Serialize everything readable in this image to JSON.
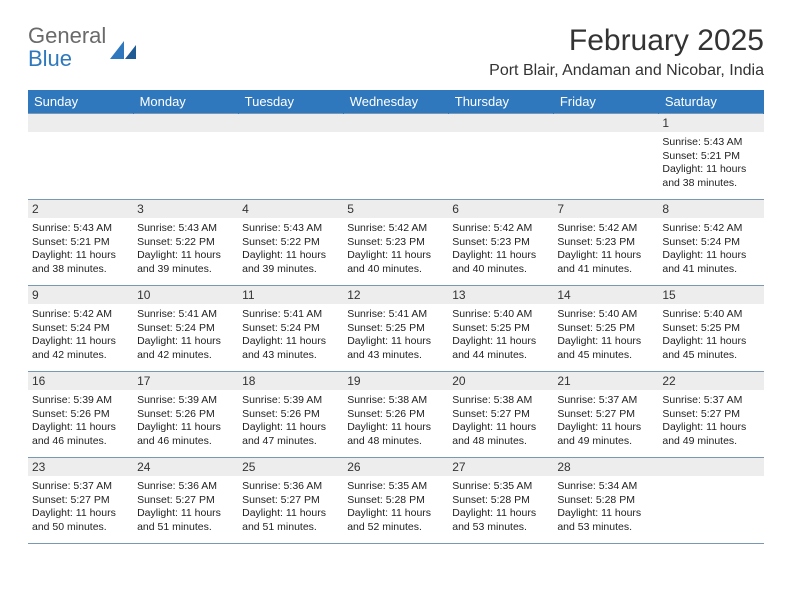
{
  "logo": {
    "line1": "General",
    "line2": "Blue"
  },
  "title": "February 2025",
  "location": "Port Blair, Andaman and Nicobar, India",
  "colors": {
    "header_bg": "#2f78bd",
    "header_text": "#ffffff",
    "daynum_bg": "#ededed",
    "cell_border": "#7a98b4",
    "body_text": "#333333",
    "logo_gray": "#6a6a6a",
    "logo_blue": "#2f78bd"
  },
  "weekdays": [
    "Sunday",
    "Monday",
    "Tuesday",
    "Wednesday",
    "Thursday",
    "Friday",
    "Saturday"
  ],
  "weeks": [
    [
      null,
      null,
      null,
      null,
      null,
      null,
      {
        "d": "1",
        "sr": "5:43 AM",
        "ss": "5:21 PM",
        "dl": "11 hours and 38 minutes."
      }
    ],
    [
      {
        "d": "2",
        "sr": "5:43 AM",
        "ss": "5:21 PM",
        "dl": "11 hours and 38 minutes."
      },
      {
        "d": "3",
        "sr": "5:43 AM",
        "ss": "5:22 PM",
        "dl": "11 hours and 39 minutes."
      },
      {
        "d": "4",
        "sr": "5:43 AM",
        "ss": "5:22 PM",
        "dl": "11 hours and 39 minutes."
      },
      {
        "d": "5",
        "sr": "5:42 AM",
        "ss": "5:23 PM",
        "dl": "11 hours and 40 minutes."
      },
      {
        "d": "6",
        "sr": "5:42 AM",
        "ss": "5:23 PM",
        "dl": "11 hours and 40 minutes."
      },
      {
        "d": "7",
        "sr": "5:42 AM",
        "ss": "5:23 PM",
        "dl": "11 hours and 41 minutes."
      },
      {
        "d": "8",
        "sr": "5:42 AM",
        "ss": "5:24 PM",
        "dl": "11 hours and 41 minutes."
      }
    ],
    [
      {
        "d": "9",
        "sr": "5:42 AM",
        "ss": "5:24 PM",
        "dl": "11 hours and 42 minutes."
      },
      {
        "d": "10",
        "sr": "5:41 AM",
        "ss": "5:24 PM",
        "dl": "11 hours and 42 minutes."
      },
      {
        "d": "11",
        "sr": "5:41 AM",
        "ss": "5:24 PM",
        "dl": "11 hours and 43 minutes."
      },
      {
        "d": "12",
        "sr": "5:41 AM",
        "ss": "5:25 PM",
        "dl": "11 hours and 43 minutes."
      },
      {
        "d": "13",
        "sr": "5:40 AM",
        "ss": "5:25 PM",
        "dl": "11 hours and 44 minutes."
      },
      {
        "d": "14",
        "sr": "5:40 AM",
        "ss": "5:25 PM",
        "dl": "11 hours and 45 minutes."
      },
      {
        "d": "15",
        "sr": "5:40 AM",
        "ss": "5:25 PM",
        "dl": "11 hours and 45 minutes."
      }
    ],
    [
      {
        "d": "16",
        "sr": "5:39 AM",
        "ss": "5:26 PM",
        "dl": "11 hours and 46 minutes."
      },
      {
        "d": "17",
        "sr": "5:39 AM",
        "ss": "5:26 PM",
        "dl": "11 hours and 46 minutes."
      },
      {
        "d": "18",
        "sr": "5:39 AM",
        "ss": "5:26 PM",
        "dl": "11 hours and 47 minutes."
      },
      {
        "d": "19",
        "sr": "5:38 AM",
        "ss": "5:26 PM",
        "dl": "11 hours and 48 minutes."
      },
      {
        "d": "20",
        "sr": "5:38 AM",
        "ss": "5:27 PM",
        "dl": "11 hours and 48 minutes."
      },
      {
        "d": "21",
        "sr": "5:37 AM",
        "ss": "5:27 PM",
        "dl": "11 hours and 49 minutes."
      },
      {
        "d": "22",
        "sr": "5:37 AM",
        "ss": "5:27 PM",
        "dl": "11 hours and 49 minutes."
      }
    ],
    [
      {
        "d": "23",
        "sr": "5:37 AM",
        "ss": "5:27 PM",
        "dl": "11 hours and 50 minutes."
      },
      {
        "d": "24",
        "sr": "5:36 AM",
        "ss": "5:27 PM",
        "dl": "11 hours and 51 minutes."
      },
      {
        "d": "25",
        "sr": "5:36 AM",
        "ss": "5:27 PM",
        "dl": "11 hours and 51 minutes."
      },
      {
        "d": "26",
        "sr": "5:35 AM",
        "ss": "5:28 PM",
        "dl": "11 hours and 52 minutes."
      },
      {
        "d": "27",
        "sr": "5:35 AM",
        "ss": "5:28 PM",
        "dl": "11 hours and 53 minutes."
      },
      {
        "d": "28",
        "sr": "5:34 AM",
        "ss": "5:28 PM",
        "dl": "11 hours and 53 minutes."
      },
      null
    ]
  ],
  "labels": {
    "sunrise": "Sunrise:",
    "sunset": "Sunset:",
    "daylight": "Daylight:"
  }
}
